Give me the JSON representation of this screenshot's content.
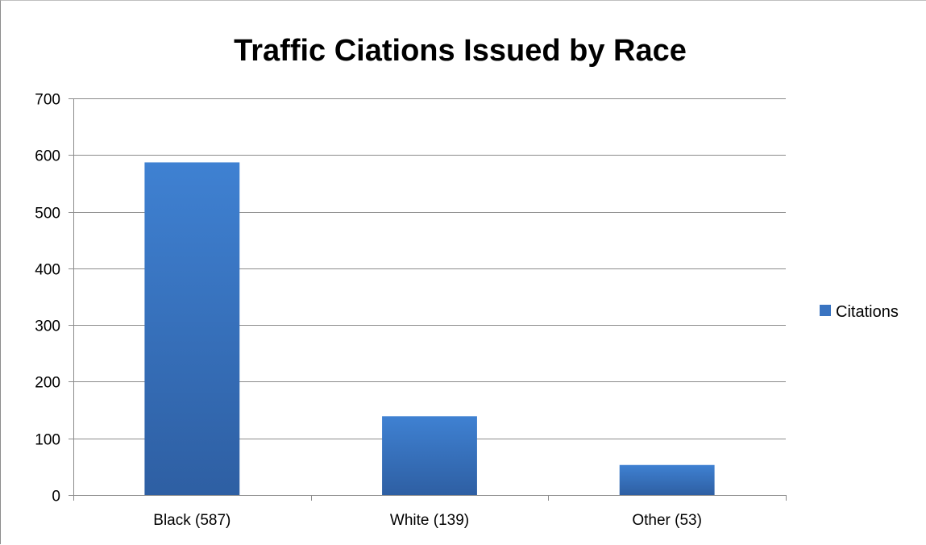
{
  "chart_data": {
    "type": "bar",
    "title": "Traffic Ciations Issued by Race",
    "xlabel": "",
    "ylabel": "",
    "categories": [
      "Black (587)",
      "White (139)",
      "Other (53)"
    ],
    "series": [
      {
        "name": "Citations",
        "values": [
          587,
          139,
          53
        ],
        "color": "#3a74c1"
      }
    ],
    "ylim": [
      0,
      700
    ],
    "yticks": [
      0,
      100,
      200,
      300,
      400,
      500,
      600,
      700
    ],
    "ytick_labels": [
      "0",
      "100",
      "200",
      "300",
      "400",
      "500",
      "600",
      "700"
    ],
    "grid": true,
    "legend": "right"
  }
}
